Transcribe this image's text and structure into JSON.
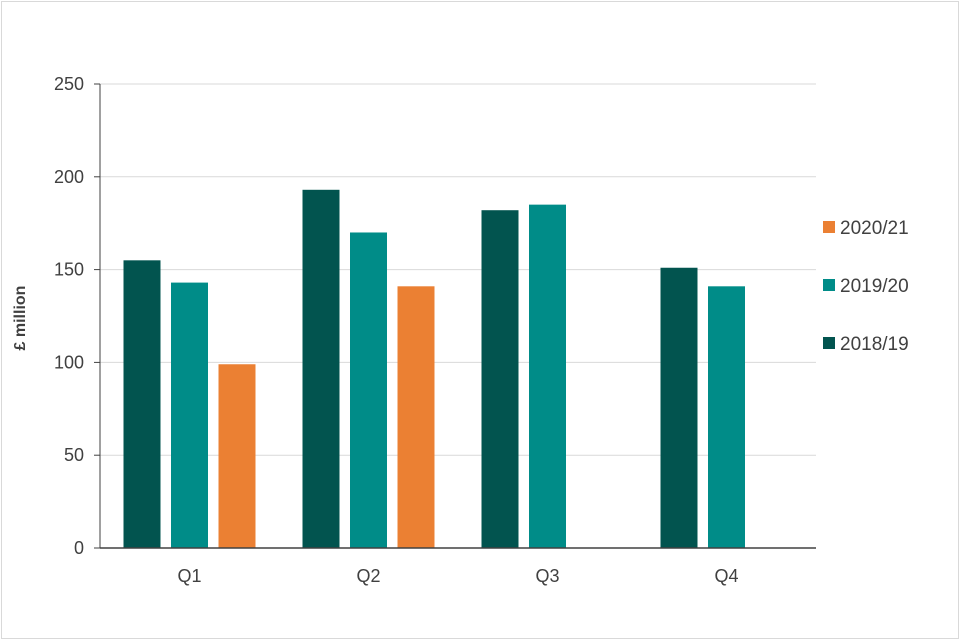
{
  "chart_data": {
    "type": "bar",
    "categories": [
      "Q1",
      "Q2",
      "Q3",
      "Q4"
    ],
    "series": [
      {
        "name": "2018/19",
        "color": "#02544F",
        "values": [
          155,
          193,
          182,
          151
        ]
      },
      {
        "name": "2019/20",
        "color": "#008C88",
        "values": [
          143,
          170,
          185,
          141
        ]
      },
      {
        "name": "2020/21",
        "color": "#EB8033",
        "values": [
          99,
          141,
          null,
          null
        ]
      }
    ],
    "title": "",
    "xlabel": "",
    "ylabel": "£ million",
    "ylim": [
      0,
      250
    ],
    "yticks": [
      "0",
      "50",
      "100",
      "150",
      "200",
      "250"
    ],
    "grid": true,
    "legend_order": [
      "2020/21",
      "2019/20",
      "2018/19"
    ],
    "legend_position": "right"
  }
}
